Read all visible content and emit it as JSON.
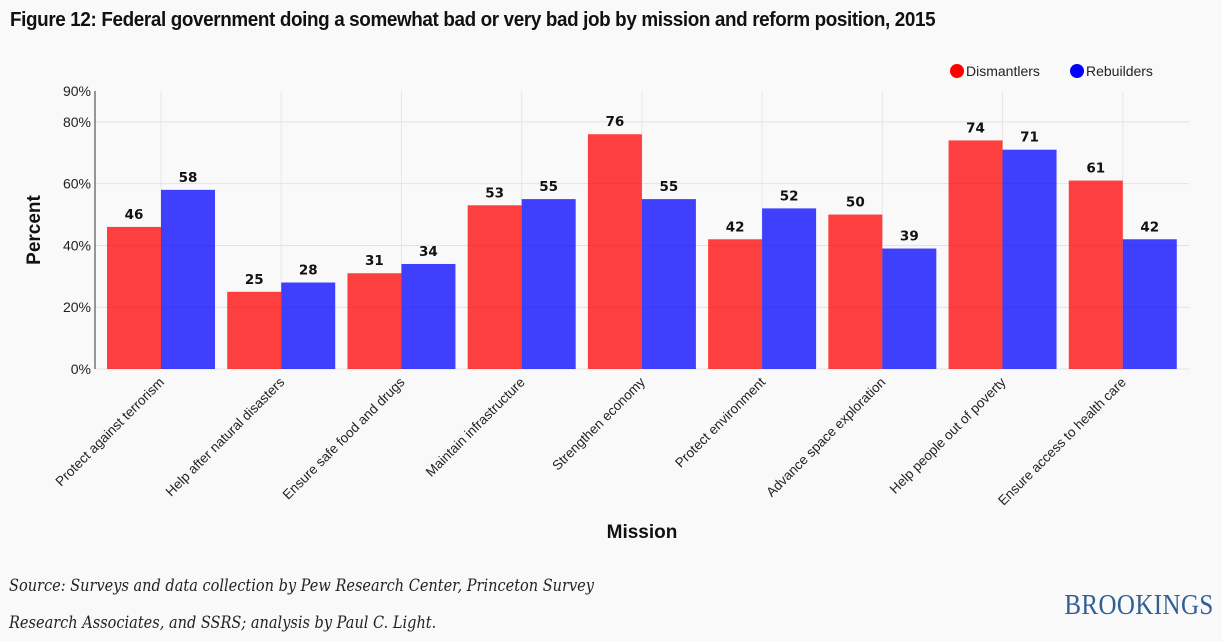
{
  "page": {
    "title": "Figure 12: Federal government doing a somewhat bad or very bad job by mission and reform position, 2015",
    "source_line1": "Source: Surveys and data collection by Pew Research Center, Princeton Survey",
    "source_line2": "Research Associates, and SSRS; analysis by Paul C. Light.",
    "brand": "BROOKINGS"
  },
  "chart_data": {
    "type": "bar",
    "title": "Figure 12: Federal government doing a somewhat bad or very bad job by mission and reform position, 2015",
    "xlabel": "Mission",
    "ylabel": "Percent",
    "ylim": [
      0,
      90
    ],
    "yticks": [
      0,
      20,
      40,
      60,
      80,
      90
    ],
    "ytick_labels": [
      "0%",
      "20%",
      "40%",
      "60%",
      "80%",
      "90%"
    ],
    "grid": true,
    "legend_position": "top-right",
    "categories": [
      "Protect against terrorism",
      "Help after natural disasters",
      "Ensure safe food and drugs",
      "Maintain infrastructure",
      "Strengthen economy",
      "Protect environment",
      "Advance space exploration",
      "Help people out of poverty",
      "Ensure access to health care"
    ],
    "series": [
      {
        "name": "Dismantlers",
        "color": "#ff0000",
        "values": [
          46,
          25,
          31,
          53,
          76,
          42,
          50,
          74,
          61
        ]
      },
      {
        "name": "Rebuilders",
        "color": "#0000ff",
        "values": [
          58,
          28,
          34,
          55,
          55,
          52,
          39,
          71,
          42
        ]
      }
    ]
  }
}
